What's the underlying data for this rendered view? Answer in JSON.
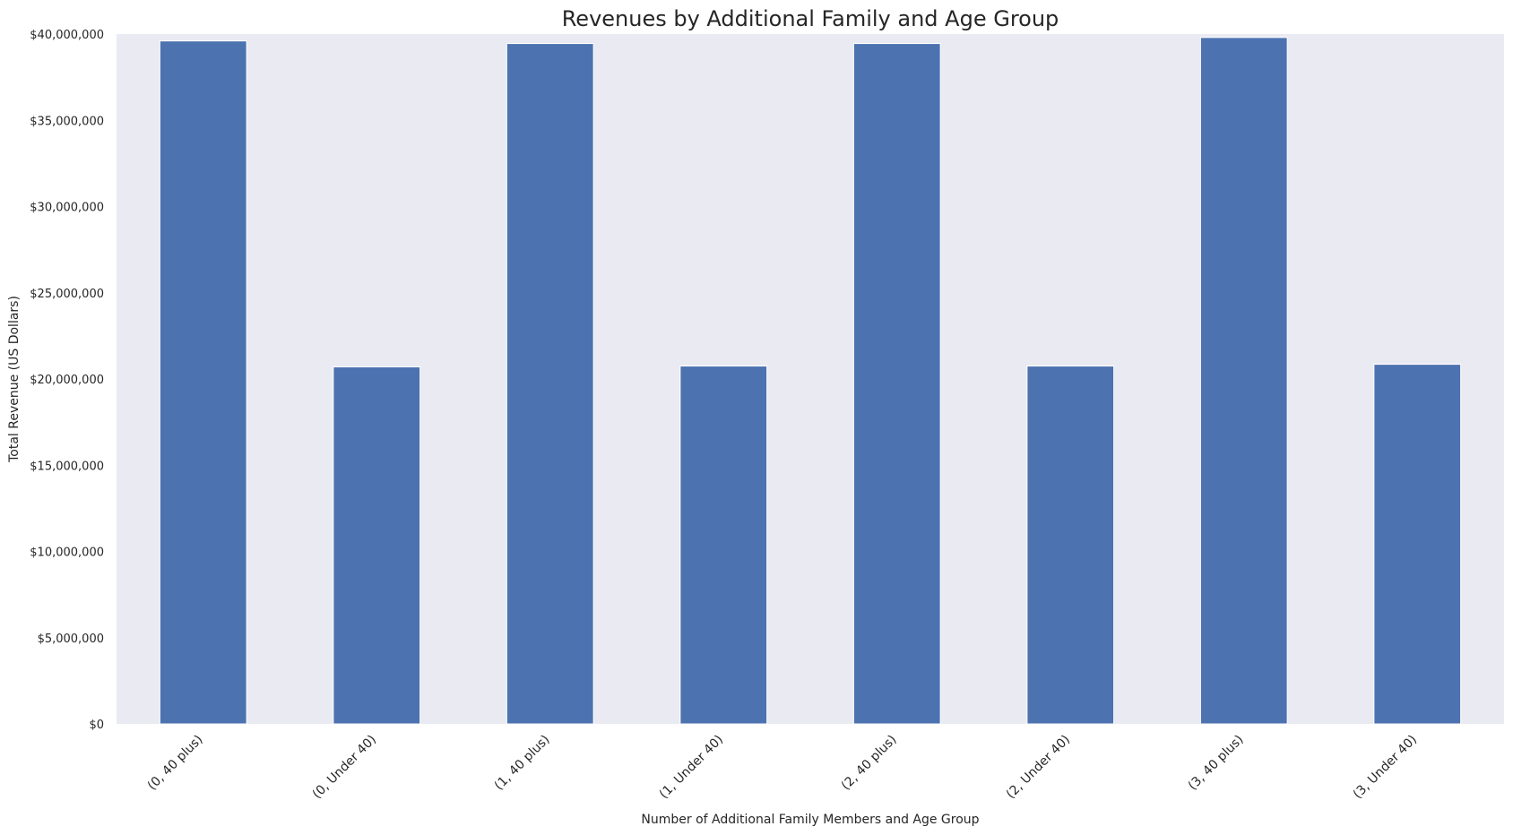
{
  "chart_data": {
    "type": "bar",
    "title": "Revenues by Additional Family and Age Group",
    "xlabel": "Number of Additional Family Members and Age Group",
    "ylabel": "Total Revenue (US Dollars)",
    "categories": [
      "(0, 40 plus)",
      "(0, Under 40)",
      "(1, 40 plus)",
      "(1, Under 40)",
      "(2, 40 plus)",
      "(2, Under 40)",
      "(3, 40 plus)",
      "(3, Under 40)"
    ],
    "values": [
      39600000,
      20700000,
      39450000,
      20750000,
      39450000,
      20750000,
      39800000,
      20850000
    ],
    "ylim": [
      0,
      40000000
    ],
    "yticks": [
      0,
      5000000,
      10000000,
      15000000,
      20000000,
      25000000,
      30000000,
      35000000,
      40000000
    ],
    "ytick_labels": [
      "$0",
      "$5,000,000",
      "$10,000,000",
      "$15,000,000",
      "$20,000,000",
      "$25,000,000",
      "$30,000,000",
      "$35,000,000",
      "$40,000,000"
    ],
    "grid": false,
    "legend": "none",
    "colors": {
      "bar": "#4c72b0",
      "plot_background": "#eaeaf2",
      "figure_background": "#ffffff"
    }
  }
}
